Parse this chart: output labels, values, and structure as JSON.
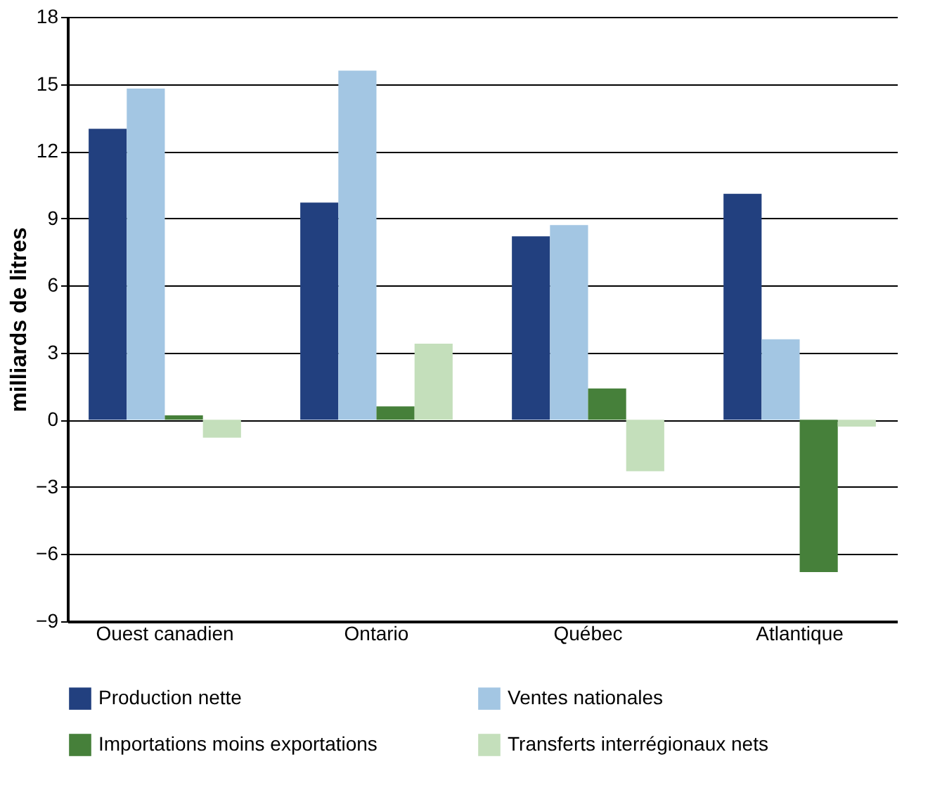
{
  "chart_data": {
    "type": "bar",
    "ylabel": "milliards de litres",
    "categories": [
      "Ouest canadien",
      "Ontario",
      "Québec",
      "Atlantique"
    ],
    "series": [
      {
        "name": "Production nette",
        "color": "#22407f",
        "values": [
          13.0,
          9.7,
          8.2,
          10.1
        ]
      },
      {
        "name": "Ventes nationales",
        "color": "#a3c6e3",
        "values": [
          14.8,
          15.6,
          8.7,
          3.6
        ]
      },
      {
        "name": "Importations moins exportations",
        "color": "#46803a",
        "values": [
          0.2,
          0.6,
          1.4,
          -6.8
        ]
      },
      {
        "name": "Transferts interrégionaux nets",
        "color": "#c4dfbb",
        "values": [
          -0.8,
          3.4,
          -2.3,
          -0.3
        ]
      }
    ],
    "ylim": [
      -9,
      18
    ],
    "yticks": [
      -9,
      -6,
      -3,
      0,
      3,
      6,
      9,
      12,
      15,
      18
    ],
    "grid": "y",
    "legend": "bottom"
  }
}
